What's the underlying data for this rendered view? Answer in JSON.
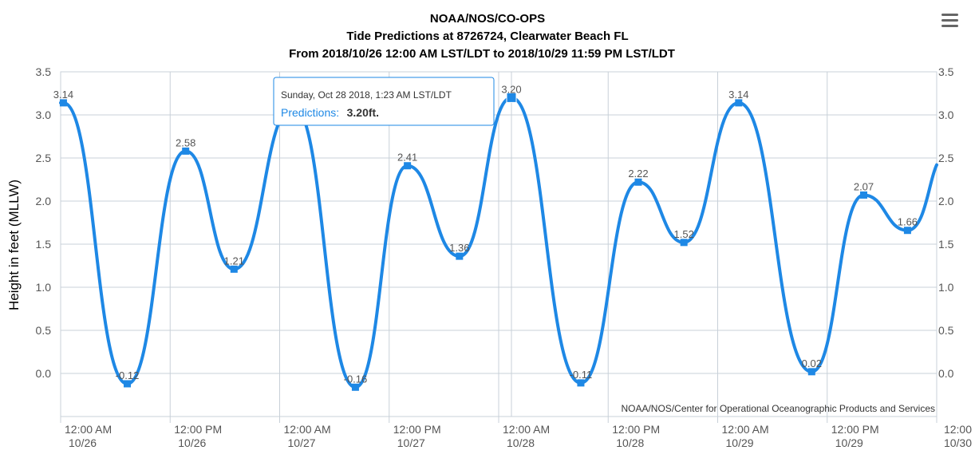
{
  "title": {
    "line1": "NOAA/NOS/CO-OPS",
    "line2": "Tide Predictions at 8726724, Clearwater Beach FL",
    "line3": "From 2018/10/26 12:00 AM LST/LDT to 2018/10/29 11:59 PM LST/LDT"
  },
  "menu": {
    "icon": "hamburger-menu-icon"
  },
  "credits": "NOAA/NOS/Center for Operational Oceanographic Products and Services",
  "tooltip": {
    "header": "Sunday, Oct 28 2018, 1:23 AM LST/LDT",
    "series": "Predictions:",
    "value": "3.20ft."
  },
  "colors": {
    "series": "#1e88e5",
    "grid": "#c8d0d8"
  },
  "chart_data": {
    "type": "line",
    "ylabel": "Height in feet (MLLW)",
    "ylim": [
      -0.5,
      3.5
    ],
    "yticks": [
      "3.5",
      "3.0",
      "2.5",
      "2.0",
      "1.5",
      "1.0",
      "0.5",
      "0.0"
    ],
    "ytick_values": [
      3.5,
      3.0,
      2.5,
      2.0,
      1.5,
      1.0,
      0.5,
      0.0
    ],
    "xlim_hours": [
      0,
      96
    ],
    "xticks": [
      {
        "hour": 0,
        "time": "12:00 AM",
        "date": "10/26"
      },
      {
        "hour": 12,
        "time": "12:00 PM",
        "date": "10/26"
      },
      {
        "hour": 24,
        "time": "12:00 AM",
        "date": "10/27"
      },
      {
        "hour": 36,
        "time": "12:00 PM",
        "date": "10/27"
      },
      {
        "hour": 48,
        "time": "12:00 AM",
        "date": "10/28"
      },
      {
        "hour": 60,
        "time": "12:00 PM",
        "date": "10/28"
      },
      {
        "hour": 72,
        "time": "12:00 AM",
        "date": "10/29"
      },
      {
        "hour": 84,
        "time": "12:00 PM",
        "date": "10/29"
      },
      {
        "hour": 96,
        "time": "12:00",
        "date": "10/30"
      }
    ],
    "grid": true,
    "legend": "none",
    "series": [
      {
        "points": [
          {
            "t": 0.3,
            "v": 3.14,
            "label": "3.14"
          },
          {
            "t": 7.3,
            "v": -0.12,
            "label": "-0.12"
          },
          {
            "t": 13.7,
            "v": 2.58,
            "label": "2.58"
          },
          {
            "t": 19.0,
            "v": 1.21,
            "label": "1.21"
          },
          {
            "t": 25.5,
            "v": 3.1,
            "label": "3.10"
          },
          {
            "t": 32.3,
            "v": -0.16,
            "label": "-0.16"
          },
          {
            "t": 38.0,
            "v": 2.41,
            "label": "2.41"
          },
          {
            "t": 43.7,
            "v": 1.36,
            "label": "1.36"
          },
          {
            "t": 49.4,
            "v": 3.2,
            "label": "3.20"
          },
          {
            "t": 57.0,
            "v": -0.11,
            "label": "-0.11"
          },
          {
            "t": 63.3,
            "v": 2.22,
            "label": "2.22"
          },
          {
            "t": 68.3,
            "v": 1.52,
            "label": "1.52"
          },
          {
            "t": 74.3,
            "v": 3.14,
            "label": "3.14"
          },
          {
            "t": 82.3,
            "v": 0.02,
            "label": "0.02"
          },
          {
            "t": 88.0,
            "v": 2.07,
            "label": "2.07"
          },
          {
            "t": 92.8,
            "v": 1.66,
            "label": "1.66"
          }
        ],
        "end_value": 2.42
      }
    ]
  }
}
